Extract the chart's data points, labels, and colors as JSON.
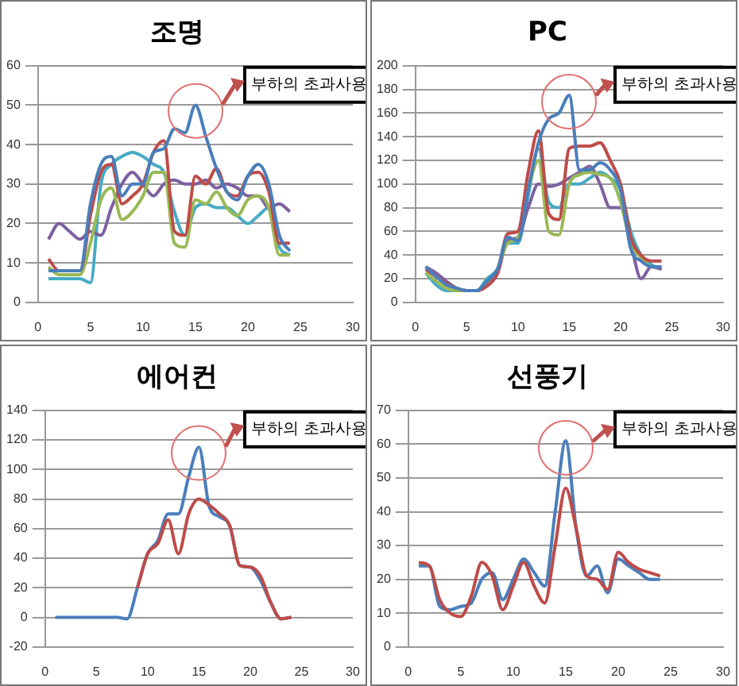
{
  "chart_data": [
    {
      "type": "line",
      "title": "조명",
      "x": [
        1,
        2,
        3,
        4,
        5,
        6,
        7,
        8,
        9,
        10,
        11,
        12,
        13,
        14,
        15,
        16,
        17,
        18,
        19,
        20,
        21,
        22,
        23,
        24
      ],
      "xlim": [
        0,
        30
      ],
      "xticks": [
        0,
        5,
        10,
        15,
        20,
        25,
        30
      ],
      "ylim": [
        0,
        60
      ],
      "yticks": [
        0,
        10,
        20,
        30,
        40,
        50,
        60
      ],
      "grid": "y",
      "marker": "none",
      "annotations": [
        "부하의 초과사용"
      ],
      "series": [
        {
          "color": "#4a7ebb",
          "values": [
            8,
            8,
            8,
            8,
            25,
            35,
            37,
            27,
            30,
            30,
            38,
            39,
            44,
            43,
            50,
            42,
            34,
            28,
            26,
            32,
            35,
            30,
            17,
            13
          ]
        },
        {
          "color": "#be4b48",
          "values": [
            11,
            8,
            8,
            8,
            22,
            33,
            35,
            25,
            27,
            30,
            38,
            41,
            18,
            17,
            32,
            30,
            34,
            28,
            27,
            32,
            33,
            28,
            15,
            15
          ]
        },
        {
          "color": "#98b954",
          "values": [
            9,
            7,
            7,
            7,
            15,
            26,
            29,
            21,
            23,
            27,
            33,
            33,
            15,
            14,
            26,
            25,
            28,
            24,
            22,
            26,
            27,
            24,
            12,
            12
          ]
        },
        {
          "color": "#7d60a0",
          "values": [
            16,
            20,
            18,
            16,
            18,
            17,
            24,
            30,
            33,
            30,
            27,
            30,
            31,
            30,
            30,
            31,
            29,
            30,
            29,
            27,
            27,
            24,
            25,
            23
          ]
        },
        {
          "color": "#46aac5",
          "values": [
            6,
            6,
            6,
            6,
            5,
            30,
            35,
            37,
            38,
            37,
            35,
            33,
            23,
            17,
            24,
            25,
            24,
            24,
            22,
            20,
            22,
            24,
            14,
            12
          ]
        }
      ]
    },
    {
      "type": "line",
      "title": "PC",
      "x": [
        1,
        2,
        3,
        4,
        5,
        6,
        7,
        8,
        9,
        10,
        11,
        12,
        13,
        14,
        15,
        16,
        17,
        18,
        19,
        20,
        21,
        22,
        23,
        24
      ],
      "xlim": [
        0,
        30
      ],
      "xticks": [
        0,
        5,
        10,
        15,
        20,
        25,
        30
      ],
      "ylim": [
        0,
        200
      ],
      "yticks": [
        0,
        20,
        40,
        60,
        80,
        100,
        120,
        140,
        160,
        180,
        200
      ],
      "grid": "y",
      "marker": "none",
      "annotations": [
        "부하의 초과사용"
      ],
      "series": [
        {
          "color": "#4a7ebb",
          "values": [
            30,
            22,
            15,
            12,
            10,
            10,
            18,
            28,
            55,
            52,
            95,
            135,
            155,
            160,
            175,
            112,
            112,
            118,
            112,
            95,
            45,
            35,
            30,
            30
          ]
        },
        {
          "color": "#be4b48",
          "values": [
            28,
            22,
            16,
            12,
            10,
            10,
            14,
            25,
            58,
            60,
            110,
            145,
            75,
            70,
            130,
            132,
            132,
            135,
            120,
            100,
            55,
            40,
            35,
            35
          ]
        },
        {
          "color": "#98b954",
          "values": [
            25,
            18,
            12,
            10,
            10,
            10,
            15,
            28,
            50,
            55,
            95,
            120,
            60,
            57,
            100,
            108,
            110,
            108,
            105,
            85,
            50,
            38,
            30,
            30
          ]
        },
        {
          "color": "#7d60a0",
          "values": [
            30,
            25,
            18,
            12,
            10,
            10,
            14,
            24,
            52,
            55,
            80,
            100,
            98,
            100,
            105,
            110,
            115,
            100,
            80,
            80,
            50,
            20,
            30,
            28
          ]
        },
        {
          "color": "#46aac5",
          "values": [
            25,
            15,
            10,
            10,
            10,
            10,
            20,
            28,
            50,
            50,
            90,
            130,
            85,
            80,
            100,
            100,
            105,
            110,
            105,
            95,
            60,
            40,
            32,
            28
          ]
        }
      ]
    },
    {
      "type": "line",
      "title": "에어컨",
      "x": [
        1,
        2,
        3,
        4,
        5,
        6,
        7,
        8,
        9,
        10,
        11,
        12,
        13,
        14,
        15,
        16,
        17,
        18,
        19,
        20,
        21,
        22,
        23,
        24
      ],
      "xlim": [
        0,
        30
      ],
      "xticks": [
        0,
        5,
        10,
        15,
        20,
        25,
        30
      ],
      "ylim": [
        -20,
        140
      ],
      "yticks": [
        -20,
        0,
        20,
        40,
        60,
        80,
        100,
        120,
        140
      ],
      "grid": "y",
      "marker": "none",
      "annotations": [
        "부하의 초과사용"
      ],
      "series": [
        {
          "color": "#be4b48",
          "values": [
            null,
            null,
            null,
            null,
            null,
            null,
            null,
            null,
            20,
            43,
            50,
            66,
            43,
            70,
            80,
            76,
            70,
            62,
            35,
            34,
            28,
            10,
            -1,
            0
          ]
        },
        {
          "color": "#4a7ebb",
          "values": [
            0,
            0,
            0,
            0,
            0,
            0,
            0,
            -1,
            20,
            43,
            52,
            70,
            70,
            95,
            115,
            75,
            68,
            62,
            35,
            34,
            25,
            10,
            -1,
            0
          ]
        }
      ]
    },
    {
      "type": "line",
      "title": "선풍기",
      "x": [
        1,
        2,
        3,
        4,
        5,
        6,
        7,
        8,
        9,
        10,
        11,
        12,
        13,
        14,
        15,
        16,
        17,
        18,
        19,
        20,
        21,
        22,
        23,
        24
      ],
      "xlim": [
        0,
        30
      ],
      "xticks": [
        0,
        5,
        10,
        15,
        20,
        25,
        30
      ],
      "ylim": [
        0,
        70
      ],
      "yticks": [
        0,
        10,
        20,
        30,
        40,
        50,
        60,
        70
      ],
      "grid": "y",
      "marker": "none",
      "annotations": [
        "부하의 초과사용"
      ],
      "series": [
        {
          "color": "#be4b48",
          "values": [
            25,
            24,
            14,
            10,
            9,
            15,
            25,
            21,
            11,
            18,
            25,
            18,
            13,
            30,
            47,
            35,
            21,
            20,
            17,
            28,
            25,
            23,
            22,
            21
          ]
        },
        {
          "color": "#4a7ebb",
          "values": [
            24,
            24,
            12,
            11,
            12,
            13,
            20,
            22,
            14,
            20,
            26,
            22,
            18,
            40,
            61,
            35,
            21,
            24,
            16,
            26,
            24,
            22,
            20,
            20
          ]
        }
      ]
    }
  ]
}
